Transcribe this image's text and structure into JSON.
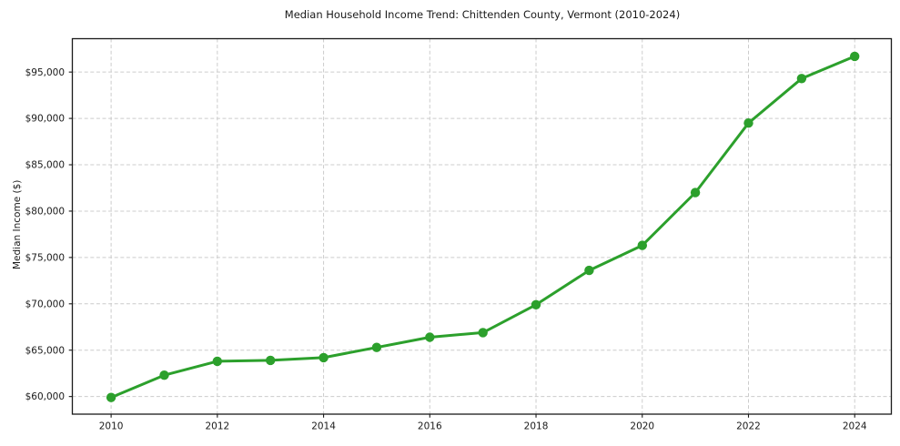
{
  "chart_data": {
    "type": "line",
    "title": "Median Household Income Trend: Chittenden County, Vermont (2010-2024)",
    "xlabel": "",
    "ylabel": "Median Income ($)",
    "x": [
      2010,
      2011,
      2012,
      2013,
      2014,
      2015,
      2016,
      2017,
      2018,
      2019,
      2020,
      2021,
      2022,
      2023,
      2024
    ],
    "values": [
      59900,
      62300,
      63800,
      63900,
      64200,
      65300,
      66400,
      66900,
      69900,
      73600,
      76300,
      82000,
      89500,
      94300,
      96700
    ],
    "x_ticks": [
      2010,
      2012,
      2014,
      2016,
      2018,
      2020,
      2022,
      2024
    ],
    "x_tick_labels": [
      "2010",
      "2012",
      "2014",
      "2016",
      "2018",
      "2020",
      "2022",
      "2024"
    ],
    "y_ticks": [
      60000,
      65000,
      70000,
      75000,
      80000,
      85000,
      90000,
      95000
    ],
    "y_tick_labels": [
      "$60,000",
      "$65,000",
      "$70,000",
      "$75,000",
      "$80,000",
      "$85,000",
      "$90,000",
      "$95,000"
    ],
    "xlim": [
      2009.27,
      2024.69
    ],
    "ylim": [
      58100,
      98600
    ],
    "grid": true,
    "grid_style": "dashed",
    "legend": false,
    "marker": "circle",
    "colors": {
      "line": "#2ca02c",
      "marker": "#2ca02c",
      "grid": "#cccccc",
      "axis": "#1a1a1a",
      "background": "#ffffff"
    }
  }
}
